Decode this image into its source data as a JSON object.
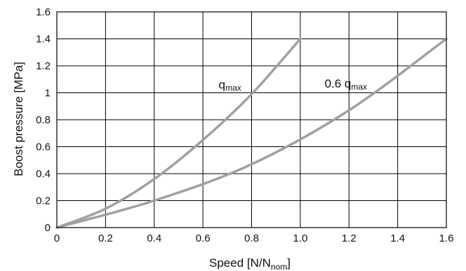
{
  "chart_data": {
    "type": "line",
    "title": "",
    "xlabel": {
      "main": "Speed [N/N",
      "sub": "nom",
      "end": "]"
    },
    "ylabel": "Boost pressure [MPa]",
    "xlim": [
      0,
      1.6
    ],
    "ylim": [
      0,
      1.6
    ],
    "xticks": [
      "0",
      "0.2",
      "0.4",
      "0.6",
      "0.8",
      "1.0",
      "1.2",
      "1.4",
      "1.6"
    ],
    "yticks": [
      "0",
      "0.2",
      "0.4",
      "0.6",
      "0.8",
      "1",
      "1.2",
      "1.4",
      "1.6"
    ],
    "grid": true,
    "legend": "none",
    "line_color": "#a0a0a0",
    "series": [
      {
        "label": {
          "main": "q",
          "sub": "max"
        },
        "label_at": [
          0.665,
          1.03
        ],
        "x": [
          0,
          0.2,
          0.4,
          0.6,
          0.8,
          1.0
        ],
        "y": [
          0,
          0.14,
          0.36,
          0.65,
          0.99,
          1.4
        ]
      },
      {
        "label": {
          "main": "0.6 q",
          "sub": "max"
        },
        "label_at": [
          1.1,
          1.04
        ],
        "x": [
          0,
          0.4,
          0.8,
          1.2,
          1.6
        ],
        "y": [
          0,
          0.2,
          0.47,
          0.87,
          1.4
        ]
      }
    ]
  }
}
